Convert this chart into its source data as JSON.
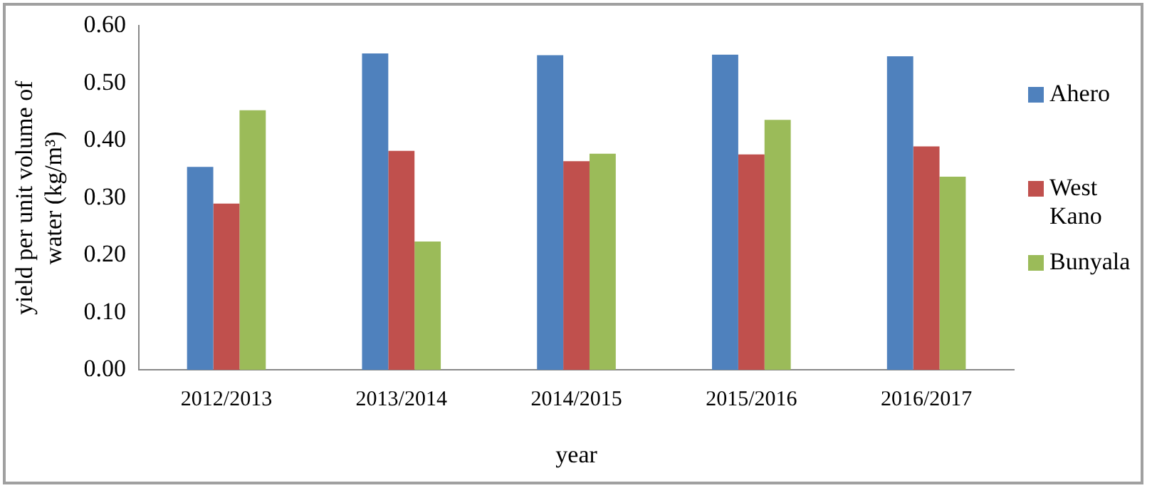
{
  "chart_data": {
    "type": "bar",
    "ylabel": "yield per unit volume of water (kg/m³)",
    "xlabel": "year",
    "categories": [
      "2012/2013",
      "2013/2014",
      "2014/2015",
      "2015/2016",
      "2016/2017"
    ],
    "series": [
      {
        "name": "Ahero",
        "color": "#4f81bd",
        "values": [
          0.354,
          0.552,
          0.549,
          0.55,
          0.547
        ]
      },
      {
        "name": "West Kano",
        "color": "#c0504d",
        "values": [
          0.29,
          0.382,
          0.364,
          0.376,
          0.39
        ]
      },
      {
        "name": "Bunyala",
        "color": "#9bbb59",
        "values": [
          0.453,
          0.224,
          0.377,
          0.436,
          0.337
        ]
      }
    ],
    "ylim": [
      0,
      0.6
    ],
    "yticks": [
      {
        "value": 0,
        "label": "0.00"
      },
      {
        "value": 0.1,
        "label": "0.10"
      },
      {
        "value": 0.2,
        "label": "0.20"
      },
      {
        "value": 0.3,
        "label": "0.30"
      },
      {
        "value": 0.4,
        "label": "0.40"
      },
      {
        "value": 0.5,
        "label": "0.50"
      },
      {
        "value": 0.6,
        "label": "0.60"
      }
    ],
    "grid": false,
    "legend": "right"
  }
}
